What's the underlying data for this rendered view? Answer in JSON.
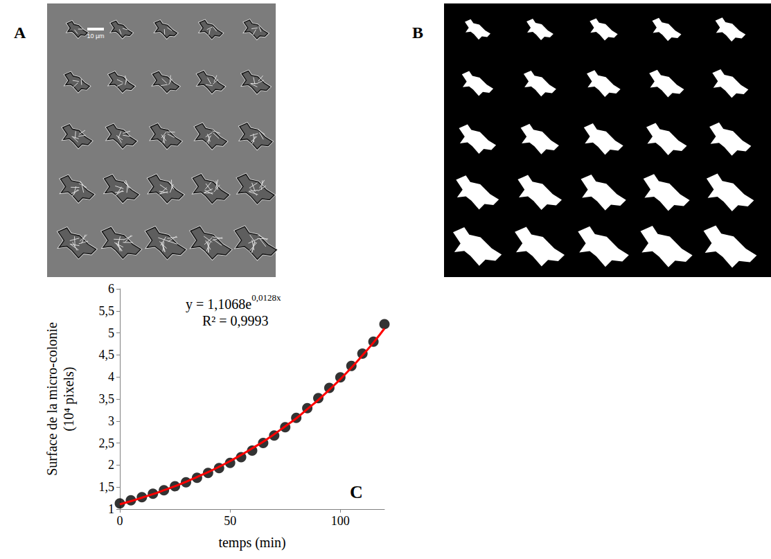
{
  "figure": {
    "panels": [
      {
        "label": "A",
        "scale_bar": "10 µm"
      },
      {
        "label": "B"
      }
    ]
  },
  "chart_data": {
    "type": "scatter",
    "panel_label": "C",
    "x_label": "temps (min)",
    "y_label": "Surface de la micro-colonie (10⁴ pixels)",
    "annotations": [
      {
        "text": "y = 1,1068e",
        "superscript": "0,0128x"
      },
      {
        "text": "R² = 0,9993"
      }
    ],
    "x": [
      0,
      5,
      10,
      15,
      20,
      25,
      30,
      35,
      40,
      45,
      50,
      55,
      60,
      65,
      70,
      75,
      80,
      85,
      90,
      95,
      100,
      105,
      110,
      115,
      120
    ],
    "series": [
      {
        "type": "scatter",
        "color": "#000000",
        "marker": "circle",
        "values": [
          1.13,
          1.2,
          1.27,
          1.35,
          1.43,
          1.52,
          1.61,
          1.71,
          1.82,
          1.93,
          2.05,
          2.18,
          2.33,
          2.5,
          2.67,
          2.86,
          3.07,
          3.29,
          3.52,
          3.75,
          3.99,
          4.25,
          4.53,
          4.8,
          5.2
        ]
      },
      {
        "type": "line",
        "color": "#ff0000",
        "line_style": "solid",
        "values": [
          1.11,
          1.18,
          1.26,
          1.34,
          1.43,
          1.52,
          1.62,
          1.73,
          1.84,
          1.96,
          2.09,
          2.23,
          2.38,
          2.53,
          2.7,
          2.88,
          3.06,
          3.27,
          3.48,
          3.71,
          3.95,
          4.21,
          4.49,
          4.78,
          5.1
        ]
      }
    ],
    "xlim": [
      0,
      120
    ],
    "xticks": [
      0,
      50,
      100
    ],
    "ylim": [
      1,
      6
    ],
    "yticks": [
      1,
      {
        "value": 1.5,
        "label": "1,5"
      },
      2,
      {
        "value": 2.5,
        "label": "2,5"
      },
      3,
      {
        "value": 3.5,
        "label": "3,5"
      },
      4,
      {
        "value": 4.5,
        "label": "4,5"
      },
      5,
      {
        "value": 5.5,
        "label": "5,5"
      },
      6
    ],
    "grid": false
  }
}
